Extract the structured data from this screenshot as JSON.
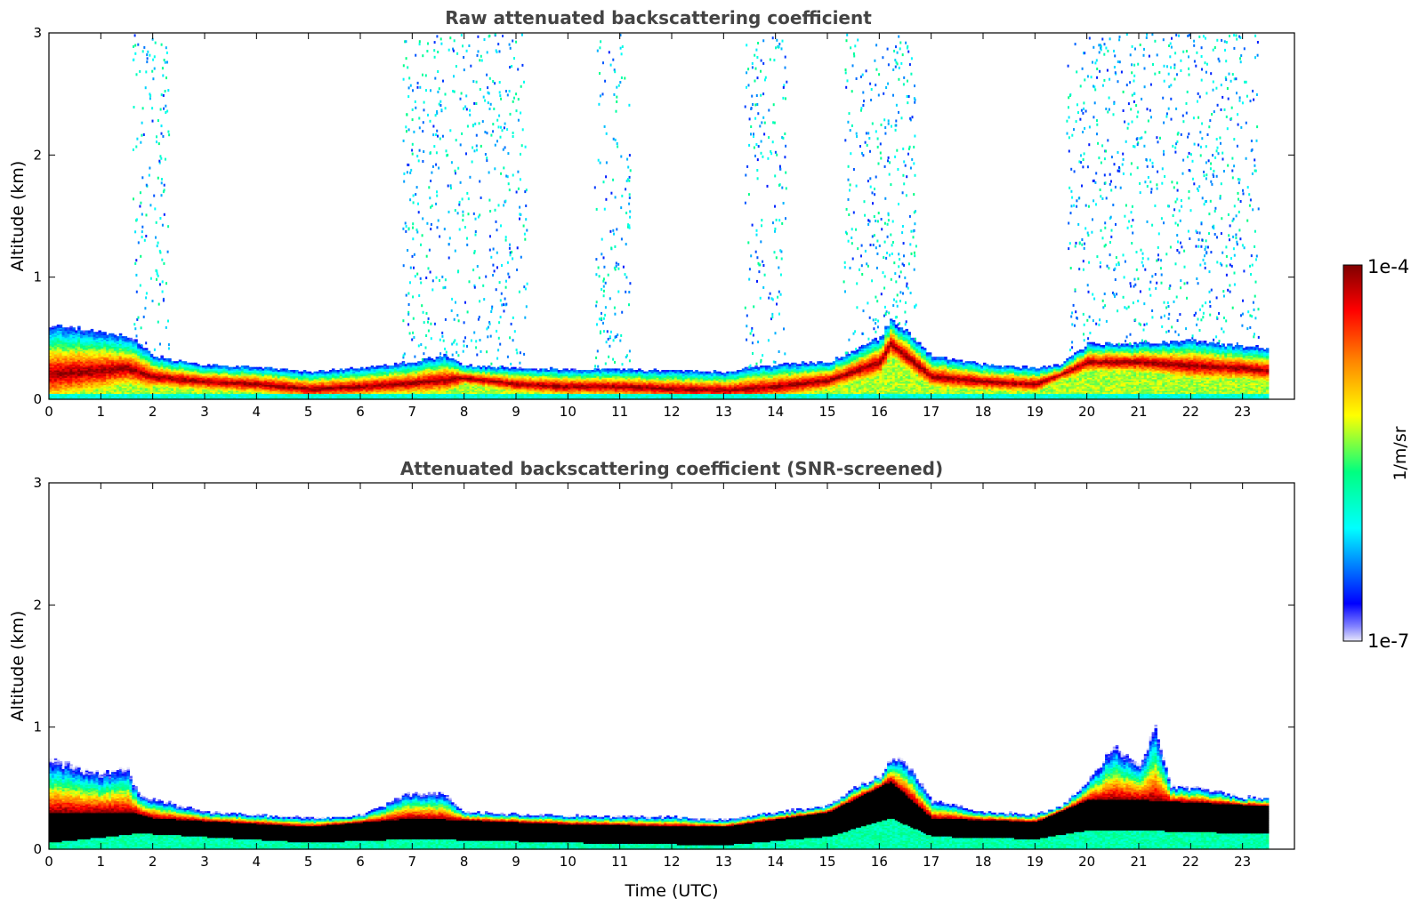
{
  "colors": {
    "jet": [
      "#e6e6fa",
      "#0000ff",
      "#00ffff",
      "#00ff80",
      "#ffff00",
      "#ff8000",
      "#ff0000",
      "#800000"
    ],
    "screened_core": "#000000"
  },
  "chart_data": [
    {
      "type": "heatmap",
      "title": "Raw attenuated backscattering coefficient",
      "xlabel": "",
      "ylabel": "Altitude (km)",
      "xlim": [
        0,
        24
      ],
      "ylim": [
        0,
        3
      ],
      "xticks": [
        "0",
        "1",
        "2",
        "3",
        "4",
        "5",
        "6",
        "7",
        "8",
        "9",
        "10",
        "11",
        "12",
        "13",
        "14",
        "15",
        "16",
        "17",
        "18",
        "19",
        "20",
        "21",
        "22",
        "23"
      ],
      "yticks": [
        "0",
        "1",
        "2",
        "3"
      ],
      "data_end_time": 23.5,
      "layer_top_km": [
        [
          0,
          0.6
        ],
        [
          1,
          0.55
        ],
        [
          1.6,
          0.5
        ],
        [
          2,
          0.35
        ],
        [
          3,
          0.27
        ],
        [
          4,
          0.26
        ],
        [
          5,
          0.22
        ],
        [
          6,
          0.25
        ],
        [
          7,
          0.3
        ],
        [
          7.6,
          0.35
        ],
        [
          8,
          0.27
        ],
        [
          9,
          0.25
        ],
        [
          10,
          0.24
        ],
        [
          11,
          0.24
        ],
        [
          12,
          0.23
        ],
        [
          13,
          0.22
        ],
        [
          14,
          0.28
        ],
        [
          15,
          0.3
        ],
        [
          15.5,
          0.4
        ],
        [
          16,
          0.5
        ],
        [
          16.2,
          0.65
        ],
        [
          16.5,
          0.55
        ],
        [
          17,
          0.35
        ],
        [
          18,
          0.28
        ],
        [
          19,
          0.25
        ],
        [
          19.5,
          0.28
        ],
        [
          20,
          0.45
        ],
        [
          21,
          0.45
        ],
        [
          22,
          0.48
        ],
        [
          23,
          0.42
        ],
        [
          23.5,
          0.42
        ]
      ],
      "peak_altitude_km": [
        [
          0,
          0.2
        ],
        [
          1.5,
          0.25
        ],
        [
          2,
          0.18
        ],
        [
          3,
          0.14
        ],
        [
          4,
          0.12
        ],
        [
          5,
          0.08
        ],
        [
          6,
          0.1
        ],
        [
          7,
          0.13
        ],
        [
          8,
          0.17
        ],
        [
          9,
          0.12
        ],
        [
          10,
          0.1
        ],
        [
          11,
          0.1
        ],
        [
          12,
          0.08
        ],
        [
          13,
          0.07
        ],
        [
          14,
          0.1
        ],
        [
          15,
          0.15
        ],
        [
          16,
          0.3
        ],
        [
          16.2,
          0.45
        ],
        [
          17,
          0.18
        ],
        [
          18,
          0.14
        ],
        [
          19,
          0.12
        ],
        [
          19.5,
          0.2
        ],
        [
          20,
          0.3
        ],
        [
          21,
          0.3
        ],
        [
          22,
          0.27
        ],
        [
          23,
          0.25
        ],
        [
          23.5,
          0.23
        ]
      ],
      "noise_periods_utc": [
        [
          1.6,
          2.3
        ],
        [
          6.8,
          9.2
        ],
        [
          10.5,
          11.2
        ],
        [
          13.4,
          14.2
        ],
        [
          15.3,
          16.7
        ],
        [
          19.6,
          23.3
        ]
      ]
    },
    {
      "type": "heatmap",
      "title": "Attenuated backscattering coefficient (SNR-screened)",
      "xlabel": "Time (UTC)",
      "ylabel": "Altitude (km)",
      "xlim": [
        0,
        24
      ],
      "ylim": [
        0,
        3
      ],
      "xticks": [
        "0",
        "1",
        "2",
        "3",
        "4",
        "5",
        "6",
        "7",
        "8",
        "9",
        "10",
        "11",
        "12",
        "13",
        "14",
        "15",
        "16",
        "17",
        "18",
        "19",
        "20",
        "21",
        "22",
        "23"
      ],
      "yticks": [
        "0",
        "1",
        "2",
        "3"
      ],
      "data_end_time": 23.5,
      "layer_top_km": [
        [
          0,
          0.72
        ],
        [
          1,
          0.62
        ],
        [
          1.5,
          0.65
        ],
        [
          1.7,
          0.45
        ],
        [
          2,
          0.4
        ],
        [
          3,
          0.3
        ],
        [
          4,
          0.28
        ],
        [
          5,
          0.25
        ],
        [
          6,
          0.27
        ],
        [
          6.9,
          0.45
        ],
        [
          7.6,
          0.45
        ],
        [
          8,
          0.3
        ],
        [
          9,
          0.28
        ],
        [
          10,
          0.27
        ],
        [
          11,
          0.26
        ],
        [
          12,
          0.26
        ],
        [
          13,
          0.24
        ],
        [
          14,
          0.3
        ],
        [
          15,
          0.35
        ],
        [
          15.5,
          0.5
        ],
        [
          16,
          0.6
        ],
        [
          16.2,
          0.75
        ],
        [
          16.5,
          0.7
        ],
        [
          17,
          0.4
        ],
        [
          18,
          0.3
        ],
        [
          19,
          0.28
        ],
        [
          19.5,
          0.35
        ],
        [
          20,
          0.55
        ],
        [
          20.5,
          0.85
        ],
        [
          21,
          0.7
        ],
        [
          21.3,
          1.0
        ],
        [
          21.6,
          0.5
        ],
        [
          22,
          0.5
        ],
        [
          23,
          0.42
        ],
        [
          23.5,
          0.42
        ]
      ],
      "core_range_km": [
        [
          0,
          [
            0.05,
            0.3
          ]
        ],
        [
          1.6,
          [
            0.12,
            0.3
          ]
        ],
        [
          2,
          [
            0.12,
            0.25
          ]
        ],
        [
          5,
          [
            0.05,
            0.18
          ]
        ],
        [
          7,
          [
            0.08,
            0.25
          ]
        ],
        [
          10,
          [
            0.05,
            0.2
          ]
        ],
        [
          13,
          [
            0.03,
            0.18
          ]
        ],
        [
          15,
          [
            0.1,
            0.3
          ]
        ],
        [
          16.2,
          [
            0.25,
            0.55
          ]
        ],
        [
          17,
          [
            0.1,
            0.25
          ]
        ],
        [
          19,
          [
            0.08,
            0.22
          ]
        ],
        [
          20,
          [
            0.15,
            0.4
          ]
        ],
        [
          21,
          [
            0.15,
            0.4
          ]
        ],
        [
          23.5,
          [
            0.12,
            0.35
          ]
        ]
      ]
    }
  ],
  "colorbar": {
    "label": "1/m/sr",
    "max_label": "1e-4",
    "min_label": "1e-7",
    "scale": "log",
    "range": [
      1e-07,
      0.0001
    ]
  }
}
